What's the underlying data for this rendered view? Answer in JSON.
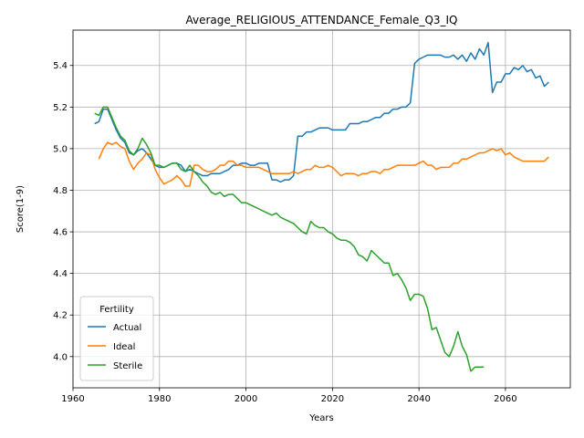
{
  "chart_data": {
    "type": "line",
    "title": "Average_RELIGIOUS_ATTENDANCE_Female_Q3_IQ",
    "xlabel": "Years",
    "ylabel": "Score(1-9)",
    "xlim": [
      1960,
      2075
    ],
    "ylim": [
      3.85,
      5.57
    ],
    "x_ticks": [
      1960,
      1980,
      2000,
      2020,
      2040,
      2060
    ],
    "y_ticks": [
      4.0,
      4.2,
      4.4,
      4.6,
      4.8,
      5.0,
      5.2,
      5.4
    ],
    "grid": true,
    "legend": {
      "title": "Fertility",
      "position": "lower-left"
    },
    "series": [
      {
        "name": "Actual",
        "color": "#1f77b4",
        "points": [
          [
            1965,
            5.12
          ],
          [
            1966,
            5.13
          ],
          [
            1967,
            5.19
          ],
          [
            1968,
            5.19
          ],
          [
            1969,
            5.14
          ],
          [
            1970,
            5.09
          ],
          [
            1971,
            5.05
          ],
          [
            1972,
            5.03
          ],
          [
            1973,
            4.98
          ],
          [
            1974,
            4.97
          ],
          [
            1975,
            4.99
          ],
          [
            1976,
            5.0
          ],
          [
            1977,
            4.98
          ],
          [
            1978,
            4.95
          ],
          [
            1979,
            4.92
          ],
          [
            1980,
            4.91
          ],
          [
            1981,
            4.91
          ],
          [
            1982,
            4.92
          ],
          [
            1983,
            4.93
          ],
          [
            1984,
            4.93
          ],
          [
            1985,
            4.92
          ],
          [
            1986,
            4.89
          ],
          [
            1987,
            4.9
          ],
          [
            1988,
            4.89
          ],
          [
            1989,
            4.88
          ],
          [
            1990,
            4.87
          ],
          [
            1991,
            4.87
          ],
          [
            1992,
            4.88
          ],
          [
            1993,
            4.88
          ],
          [
            1994,
            4.88
          ],
          [
            1995,
            4.89
          ],
          [
            1996,
            4.9
          ],
          [
            1997,
            4.92
          ],
          [
            1998,
            4.92
          ],
          [
            1999,
            4.93
          ],
          [
            2000,
            4.93
          ],
          [
            2001,
            4.92
          ],
          [
            2002,
            4.92
          ],
          [
            2003,
            4.93
          ],
          [
            2004,
            4.93
          ],
          [
            2005,
            4.93
          ],
          [
            2006,
            4.85
          ],
          [
            2007,
            4.85
          ],
          [
            2008,
            4.84
          ],
          [
            2009,
            4.85
          ],
          [
            2010,
            4.85
          ],
          [
            2011,
            4.87
          ],
          [
            2012,
            5.06
          ],
          [
            2013,
            5.06
          ],
          [
            2014,
            5.08
          ],
          [
            2015,
            5.08
          ],
          [
            2016,
            5.09
          ],
          [
            2017,
            5.1
          ],
          [
            2018,
            5.1
          ],
          [
            2019,
            5.1
          ],
          [
            2020,
            5.09
          ],
          [
            2021,
            5.09
          ],
          [
            2022,
            5.09
          ],
          [
            2023,
            5.09
          ],
          [
            2024,
            5.12
          ],
          [
            2025,
            5.12
          ],
          [
            2026,
            5.12
          ],
          [
            2027,
            5.13
          ],
          [
            2028,
            5.13
          ],
          [
            2029,
            5.14
          ],
          [
            2030,
            5.15
          ],
          [
            2031,
            5.15
          ],
          [
            2032,
            5.17
          ],
          [
            2033,
            5.17
          ],
          [
            2034,
            5.19
          ],
          [
            2035,
            5.19
          ],
          [
            2036,
            5.2
          ],
          [
            2037,
            5.2
          ],
          [
            2038,
            5.22
          ],
          [
            2039,
            5.41
          ],
          [
            2040,
            5.43
          ],
          [
            2041,
            5.44
          ],
          [
            2042,
            5.45
          ],
          [
            2043,
            5.45
          ],
          [
            2044,
            5.45
          ],
          [
            2045,
            5.45
          ],
          [
            2046,
            5.44
          ],
          [
            2047,
            5.44
          ],
          [
            2048,
            5.45
          ],
          [
            2049,
            5.43
          ],
          [
            2050,
            5.45
          ],
          [
            2051,
            5.42
          ],
          [
            2052,
            5.46
          ],
          [
            2053,
            5.43
          ],
          [
            2054,
            5.48
          ],
          [
            2055,
            5.45
          ],
          [
            2056,
            5.51
          ],
          [
            2057,
            5.27
          ],
          [
            2058,
            5.32
          ],
          [
            2059,
            5.32
          ],
          [
            2060,
            5.36
          ],
          [
            2061,
            5.36
          ],
          [
            2062,
            5.39
          ],
          [
            2063,
            5.38
          ],
          [
            2064,
            5.4
          ],
          [
            2065,
            5.37
          ],
          [
            2066,
            5.38
          ],
          [
            2067,
            5.34
          ],
          [
            2068,
            5.35
          ],
          [
            2069,
            5.3
          ],
          [
            2070,
            5.32
          ]
        ]
      },
      {
        "name": "Ideal",
        "color": "#ff7f0e",
        "points": [
          [
            1966,
            4.95
          ],
          [
            1967,
            5.0
          ],
          [
            1968,
            5.03
          ],
          [
            1969,
            5.02
          ],
          [
            1970,
            5.03
          ],
          [
            1971,
            5.01
          ],
          [
            1972,
            5.0
          ],
          [
            1973,
            4.94
          ],
          [
            1974,
            4.9
          ],
          [
            1975,
            4.93
          ],
          [
            1976,
            4.95
          ],
          [
            1977,
            4.98
          ],
          [
            1978,
            4.97
          ],
          [
            1979,
            4.9
          ],
          [
            1980,
            4.86
          ],
          [
            1981,
            4.83
          ],
          [
            1982,
            4.84
          ],
          [
            1983,
            4.85
          ],
          [
            1984,
            4.87
          ],
          [
            1985,
            4.85
          ],
          [
            1986,
            4.82
          ],
          [
            1987,
            4.82
          ],
          [
            1988,
            4.92
          ],
          [
            1989,
            4.92
          ],
          [
            1990,
            4.9
          ],
          [
            1991,
            4.89
          ],
          [
            1992,
            4.89
          ],
          [
            1993,
            4.9
          ],
          [
            1994,
            4.92
          ],
          [
            1995,
            4.92
          ],
          [
            1996,
            4.94
          ],
          [
            1997,
            4.94
          ],
          [
            1998,
            4.92
          ],
          [
            1999,
            4.92
          ],
          [
            2000,
            4.91
          ],
          [
            2001,
            4.91
          ],
          [
            2002,
            4.91
          ],
          [
            2003,
            4.91
          ],
          [
            2004,
            4.9
          ],
          [
            2005,
            4.89
          ],
          [
            2006,
            4.88
          ],
          [
            2007,
            4.88
          ],
          [
            2008,
            4.88
          ],
          [
            2009,
            4.88
          ],
          [
            2010,
            4.88
          ],
          [
            2011,
            4.89
          ],
          [
            2012,
            4.88
          ],
          [
            2013,
            4.89
          ],
          [
            2014,
            4.9
          ],
          [
            2015,
            4.9
          ],
          [
            2016,
            4.92
          ],
          [
            2017,
            4.91
          ],
          [
            2018,
            4.91
          ],
          [
            2019,
            4.92
          ],
          [
            2020,
            4.91
          ],
          [
            2021,
            4.89
          ],
          [
            2022,
            4.87
          ],
          [
            2023,
            4.88
          ],
          [
            2024,
            4.88
          ],
          [
            2025,
            4.88
          ],
          [
            2026,
            4.87
          ],
          [
            2027,
            4.88
          ],
          [
            2028,
            4.88
          ],
          [
            2029,
            4.89
          ],
          [
            2030,
            4.89
          ],
          [
            2031,
            4.88
          ],
          [
            2032,
            4.9
          ],
          [
            2033,
            4.9
          ],
          [
            2034,
            4.91
          ],
          [
            2035,
            4.92
          ],
          [
            2036,
            4.92
          ],
          [
            2037,
            4.92
          ],
          [
            2038,
            4.92
          ],
          [
            2039,
            4.92
          ],
          [
            2040,
            4.93
          ],
          [
            2041,
            4.94
          ],
          [
            2042,
            4.92
          ],
          [
            2043,
            4.92
          ],
          [
            2044,
            4.9
          ],
          [
            2045,
            4.91
          ],
          [
            2046,
            4.91
          ],
          [
            2047,
            4.91
          ],
          [
            2048,
            4.93
          ],
          [
            2049,
            4.93
          ],
          [
            2050,
            4.95
          ],
          [
            2051,
            4.95
          ],
          [
            2052,
            4.96
          ],
          [
            2053,
            4.97
          ],
          [
            2054,
            4.98
          ],
          [
            2055,
            4.98
          ],
          [
            2056,
            4.99
          ],
          [
            2057,
            5.0
          ],
          [
            2058,
            4.99
          ],
          [
            2059,
            5.0
          ],
          [
            2060,
            4.97
          ],
          [
            2061,
            4.98
          ],
          [
            2062,
            4.96
          ],
          [
            2063,
            4.95
          ],
          [
            2064,
            4.94
          ],
          [
            2065,
            4.94
          ],
          [
            2066,
            4.94
          ],
          [
            2067,
            4.94
          ],
          [
            2068,
            4.94
          ],
          [
            2069,
            4.94
          ],
          [
            2070,
            4.96
          ]
        ]
      },
      {
        "name": "Sterile",
        "color": "#2ca02c",
        "points": [
          [
            1965,
            5.17
          ],
          [
            1966,
            5.16
          ],
          [
            1967,
            5.2
          ],
          [
            1968,
            5.2
          ],
          [
            1969,
            5.15
          ],
          [
            1970,
            5.1
          ],
          [
            1971,
            5.06
          ],
          [
            1972,
            5.04
          ],
          [
            1973,
            4.99
          ],
          [
            1974,
            4.97
          ],
          [
            1975,
            5.0
          ],
          [
            1976,
            5.05
          ],
          [
            1977,
            5.02
          ],
          [
            1978,
            4.98
          ],
          [
            1979,
            4.92
          ],
          [
            1980,
            4.92
          ],
          [
            1981,
            4.91
          ],
          [
            1982,
            4.92
          ],
          [
            1983,
            4.93
          ],
          [
            1984,
            4.93
          ],
          [
            1985,
            4.9
          ],
          [
            1986,
            4.89
          ],
          [
            1987,
            4.92
          ],
          [
            1988,
            4.89
          ],
          [
            1989,
            4.87
          ],
          [
            1990,
            4.84
          ],
          [
            1991,
            4.82
          ],
          [
            1992,
            4.79
          ],
          [
            1993,
            4.78
          ],
          [
            1994,
            4.79
          ],
          [
            1995,
            4.77
          ],
          [
            1996,
            4.78
          ],
          [
            1997,
            4.78
          ],
          [
            1998,
            4.76
          ],
          [
            1999,
            4.74
          ],
          [
            2000,
            4.74
          ],
          [
            2001,
            4.73
          ],
          [
            2002,
            4.72
          ],
          [
            2003,
            4.71
          ],
          [
            2004,
            4.7
          ],
          [
            2005,
            4.69
          ],
          [
            2006,
            4.68
          ],
          [
            2007,
            4.69
          ],
          [
            2008,
            4.67
          ],
          [
            2009,
            4.66
          ],
          [
            2010,
            4.65
          ],
          [
            2011,
            4.64
          ],
          [
            2012,
            4.62
          ],
          [
            2013,
            4.6
          ],
          [
            2014,
            4.59
          ],
          [
            2015,
            4.65
          ],
          [
            2016,
            4.63
          ],
          [
            2017,
            4.62
          ],
          [
            2018,
            4.62
          ],
          [
            2019,
            4.6
          ],
          [
            2020,
            4.59
          ],
          [
            2021,
            4.57
          ],
          [
            2022,
            4.56
          ],
          [
            2023,
            4.56
          ],
          [
            2024,
            4.55
          ],
          [
            2025,
            4.53
          ],
          [
            2026,
            4.49
          ],
          [
            2027,
            4.48
          ],
          [
            2028,
            4.46
          ],
          [
            2029,
            4.51
          ],
          [
            2030,
            4.49
          ],
          [
            2031,
            4.47
          ],
          [
            2032,
            4.45
          ],
          [
            2033,
            4.45
          ],
          [
            2034,
            4.39
          ],
          [
            2035,
            4.4
          ],
          [
            2036,
            4.37
          ],
          [
            2037,
            4.33
          ],
          [
            2038,
            4.27
          ],
          [
            2039,
            4.3
          ],
          [
            2040,
            4.3
          ],
          [
            2041,
            4.29
          ],
          [
            2042,
            4.23
          ],
          [
            2043,
            4.13
          ],
          [
            2044,
            4.14
          ],
          [
            2045,
            4.08
          ],
          [
            2046,
            4.02
          ],
          [
            2047,
            4.0
          ],
          [
            2048,
            4.05
          ],
          [
            2049,
            4.12
          ],
          [
            2050,
            4.05
          ],
          [
            2051,
            4.01
          ],
          [
            2052,
            3.93
          ],
          [
            2053,
            3.95
          ],
          [
            2054,
            3.95
          ],
          [
            2055,
            3.95
          ]
        ]
      }
    ]
  }
}
